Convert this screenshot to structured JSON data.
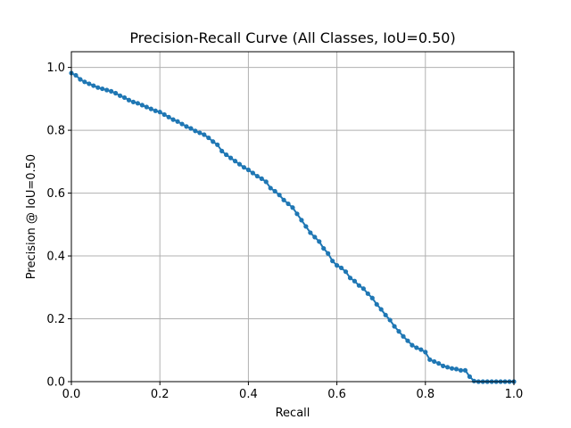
{
  "chart_data": {
    "type": "line",
    "title": "Precision-Recall Curve (All Classes, IoU=0.50)",
    "xlabel": "Recall",
    "ylabel": "Precision @ IoU=0.50",
    "xlim": [
      0,
      1
    ],
    "ylim": [
      0,
      1.05
    ],
    "xticks": [
      0,
      0.2,
      0.4,
      0.6,
      0.8,
      1
    ],
    "xtick_labels": [
      "0.0",
      "0.2",
      "0.4",
      "0.6",
      "0.8",
      "1.0"
    ],
    "yticks": [
      0,
      0.2,
      0.4,
      0.6,
      0.8,
      1
    ],
    "ytick_labels": [
      "0.0",
      "0.2",
      "0.4",
      "0.6",
      "0.8",
      "1.0"
    ],
    "grid": true,
    "color": "#1f77b4",
    "series": [
      {
        "name": "PR curve",
        "x": [
          0.0,
          0.01,
          0.02,
          0.03,
          0.04,
          0.05,
          0.06,
          0.07,
          0.08,
          0.09,
          0.1,
          0.11,
          0.12,
          0.13,
          0.14,
          0.15,
          0.16,
          0.17,
          0.18,
          0.19,
          0.2,
          0.21,
          0.22,
          0.23,
          0.24,
          0.25,
          0.26,
          0.27,
          0.28,
          0.29,
          0.3,
          0.31,
          0.32,
          0.33,
          0.34,
          0.35,
          0.36,
          0.37,
          0.38,
          0.39,
          0.4,
          0.41,
          0.42,
          0.43,
          0.44,
          0.45,
          0.46,
          0.47,
          0.48,
          0.49,
          0.5,
          0.51,
          0.52,
          0.53,
          0.54,
          0.55,
          0.56,
          0.57,
          0.58,
          0.59,
          0.6,
          0.61,
          0.62,
          0.63,
          0.64,
          0.65,
          0.66,
          0.67,
          0.68,
          0.69,
          0.7,
          0.71,
          0.72,
          0.73,
          0.74,
          0.75,
          0.76,
          0.77,
          0.78,
          0.79,
          0.8,
          0.81,
          0.82,
          0.83,
          0.84,
          0.85,
          0.86,
          0.87,
          0.88,
          0.89,
          0.9,
          0.91,
          0.92,
          0.93,
          0.94,
          0.95,
          0.96,
          0.97,
          0.98,
          0.99,
          1.0
        ],
        "y": [
          0.982,
          0.975,
          0.962,
          0.954,
          0.948,
          0.942,
          0.936,
          0.932,
          0.928,
          0.924,
          0.918,
          0.91,
          0.904,
          0.896,
          0.89,
          0.886,
          0.88,
          0.874,
          0.868,
          0.862,
          0.858,
          0.85,
          0.842,
          0.834,
          0.828,
          0.82,
          0.812,
          0.806,
          0.798,
          0.792,
          0.786,
          0.776,
          0.764,
          0.754,
          0.734,
          0.722,
          0.712,
          0.702,
          0.692,
          0.682,
          0.674,
          0.664,
          0.654,
          0.646,
          0.636,
          0.616,
          0.606,
          0.594,
          0.578,
          0.566,
          0.554,
          0.534,
          0.514,
          0.494,
          0.474,
          0.46,
          0.446,
          0.424,
          0.408,
          0.384,
          0.37,
          0.362,
          0.35,
          0.33,
          0.32,
          0.306,
          0.296,
          0.28,
          0.266,
          0.246,
          0.23,
          0.212,
          0.196,
          0.176,
          0.16,
          0.144,
          0.13,
          0.116,
          0.108,
          0.102,
          0.094,
          0.07,
          0.064,
          0.058,
          0.05,
          0.046,
          0.042,
          0.04,
          0.036,
          0.036,
          0.016,
          0.002,
          0,
          0,
          0,
          0,
          0,
          0,
          0,
          0,
          0
        ]
      }
    ]
  }
}
